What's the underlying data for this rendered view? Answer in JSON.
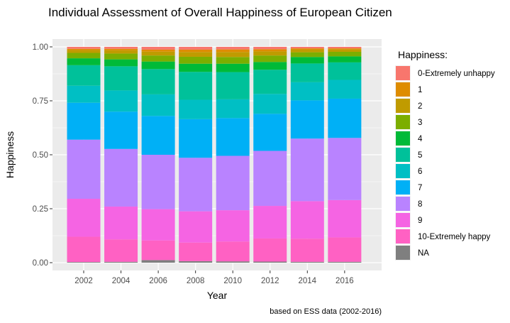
{
  "chart_data": {
    "type": "bar",
    "stacked": true,
    "title": "Individual Assessment of Overall Happiness of European Citizen",
    "xlabel": "Year",
    "ylabel": "Happiness",
    "caption": "based on ESS data (2002-2016)",
    "ylim": [
      0,
      1
    ],
    "y_ticks": [
      "0.00",
      "0.25",
      "0.50",
      "0.75",
      "1.00"
    ],
    "y_tick_values": [
      0,
      0.25,
      0.5,
      0.75,
      1.0
    ],
    "grid": true,
    "legend_title": "Happiness:",
    "legend_position": "right",
    "categories": [
      "2002",
      "2004",
      "2006",
      "2008",
      "2010",
      "2012",
      "2014",
      "2016"
    ],
    "series": [
      {
        "name": "NA",
        "color": "#7F7F7F",
        "values": [
          0.003,
          0.004,
          0.012,
          0.007,
          0.006,
          0.005,
          0.004,
          0.004
        ]
      },
      {
        "name": "10-Extremely happy",
        "color": "#FF61C3",
        "values": [
          0.117,
          0.104,
          0.091,
          0.086,
          0.092,
          0.107,
          0.107,
          0.113
        ]
      },
      {
        "name": "9",
        "color": "#F564E3",
        "values": [
          0.176,
          0.152,
          0.145,
          0.145,
          0.145,
          0.151,
          0.174,
          0.173
        ]
      },
      {
        "name": "8",
        "color": "#B983FF",
        "values": [
          0.274,
          0.267,
          0.252,
          0.248,
          0.252,
          0.255,
          0.29,
          0.288
        ]
      },
      {
        "name": "7",
        "color": "#00B0F6",
        "values": [
          0.171,
          0.173,
          0.18,
          0.179,
          0.175,
          0.172,
          0.177,
          0.182
        ]
      },
      {
        "name": "6",
        "color": "#00BFC4",
        "values": [
          0.079,
          0.098,
          0.1,
          0.09,
          0.087,
          0.092,
          0.084,
          0.087
        ]
      },
      {
        "name": "5",
        "color": "#00C19A",
        "values": [
          0.095,
          0.112,
          0.117,
          0.129,
          0.126,
          0.112,
          0.087,
          0.081
        ]
      },
      {
        "name": "4",
        "color": "#00BA38",
        "values": [
          0.032,
          0.032,
          0.035,
          0.038,
          0.039,
          0.036,
          0.03,
          0.028
        ]
      },
      {
        "name": "3",
        "color": "#7CAE00",
        "values": [
          0.025,
          0.027,
          0.028,
          0.032,
          0.031,
          0.03,
          0.022,
          0.021
        ]
      },
      {
        "name": "2",
        "color": "#C09B00",
        "values": [
          0.013,
          0.015,
          0.018,
          0.022,
          0.023,
          0.019,
          0.012,
          0.011
        ]
      },
      {
        "name": "1",
        "color": "#DE8C00",
        "values": [
          0.006,
          0.007,
          0.009,
          0.011,
          0.012,
          0.01,
          0.006,
          0.005
        ]
      },
      {
        "name": "0-Extremely unhappy",
        "color": "#F8766D",
        "values": [
          0.009,
          0.009,
          0.013,
          0.013,
          0.012,
          0.011,
          0.007,
          0.007
        ]
      }
    ],
    "legend_order": [
      "0-Extremely unhappy",
      "1",
      "2",
      "3",
      "4",
      "5",
      "6",
      "7",
      "8",
      "9",
      "10-Extremely happy",
      "NA"
    ]
  }
}
